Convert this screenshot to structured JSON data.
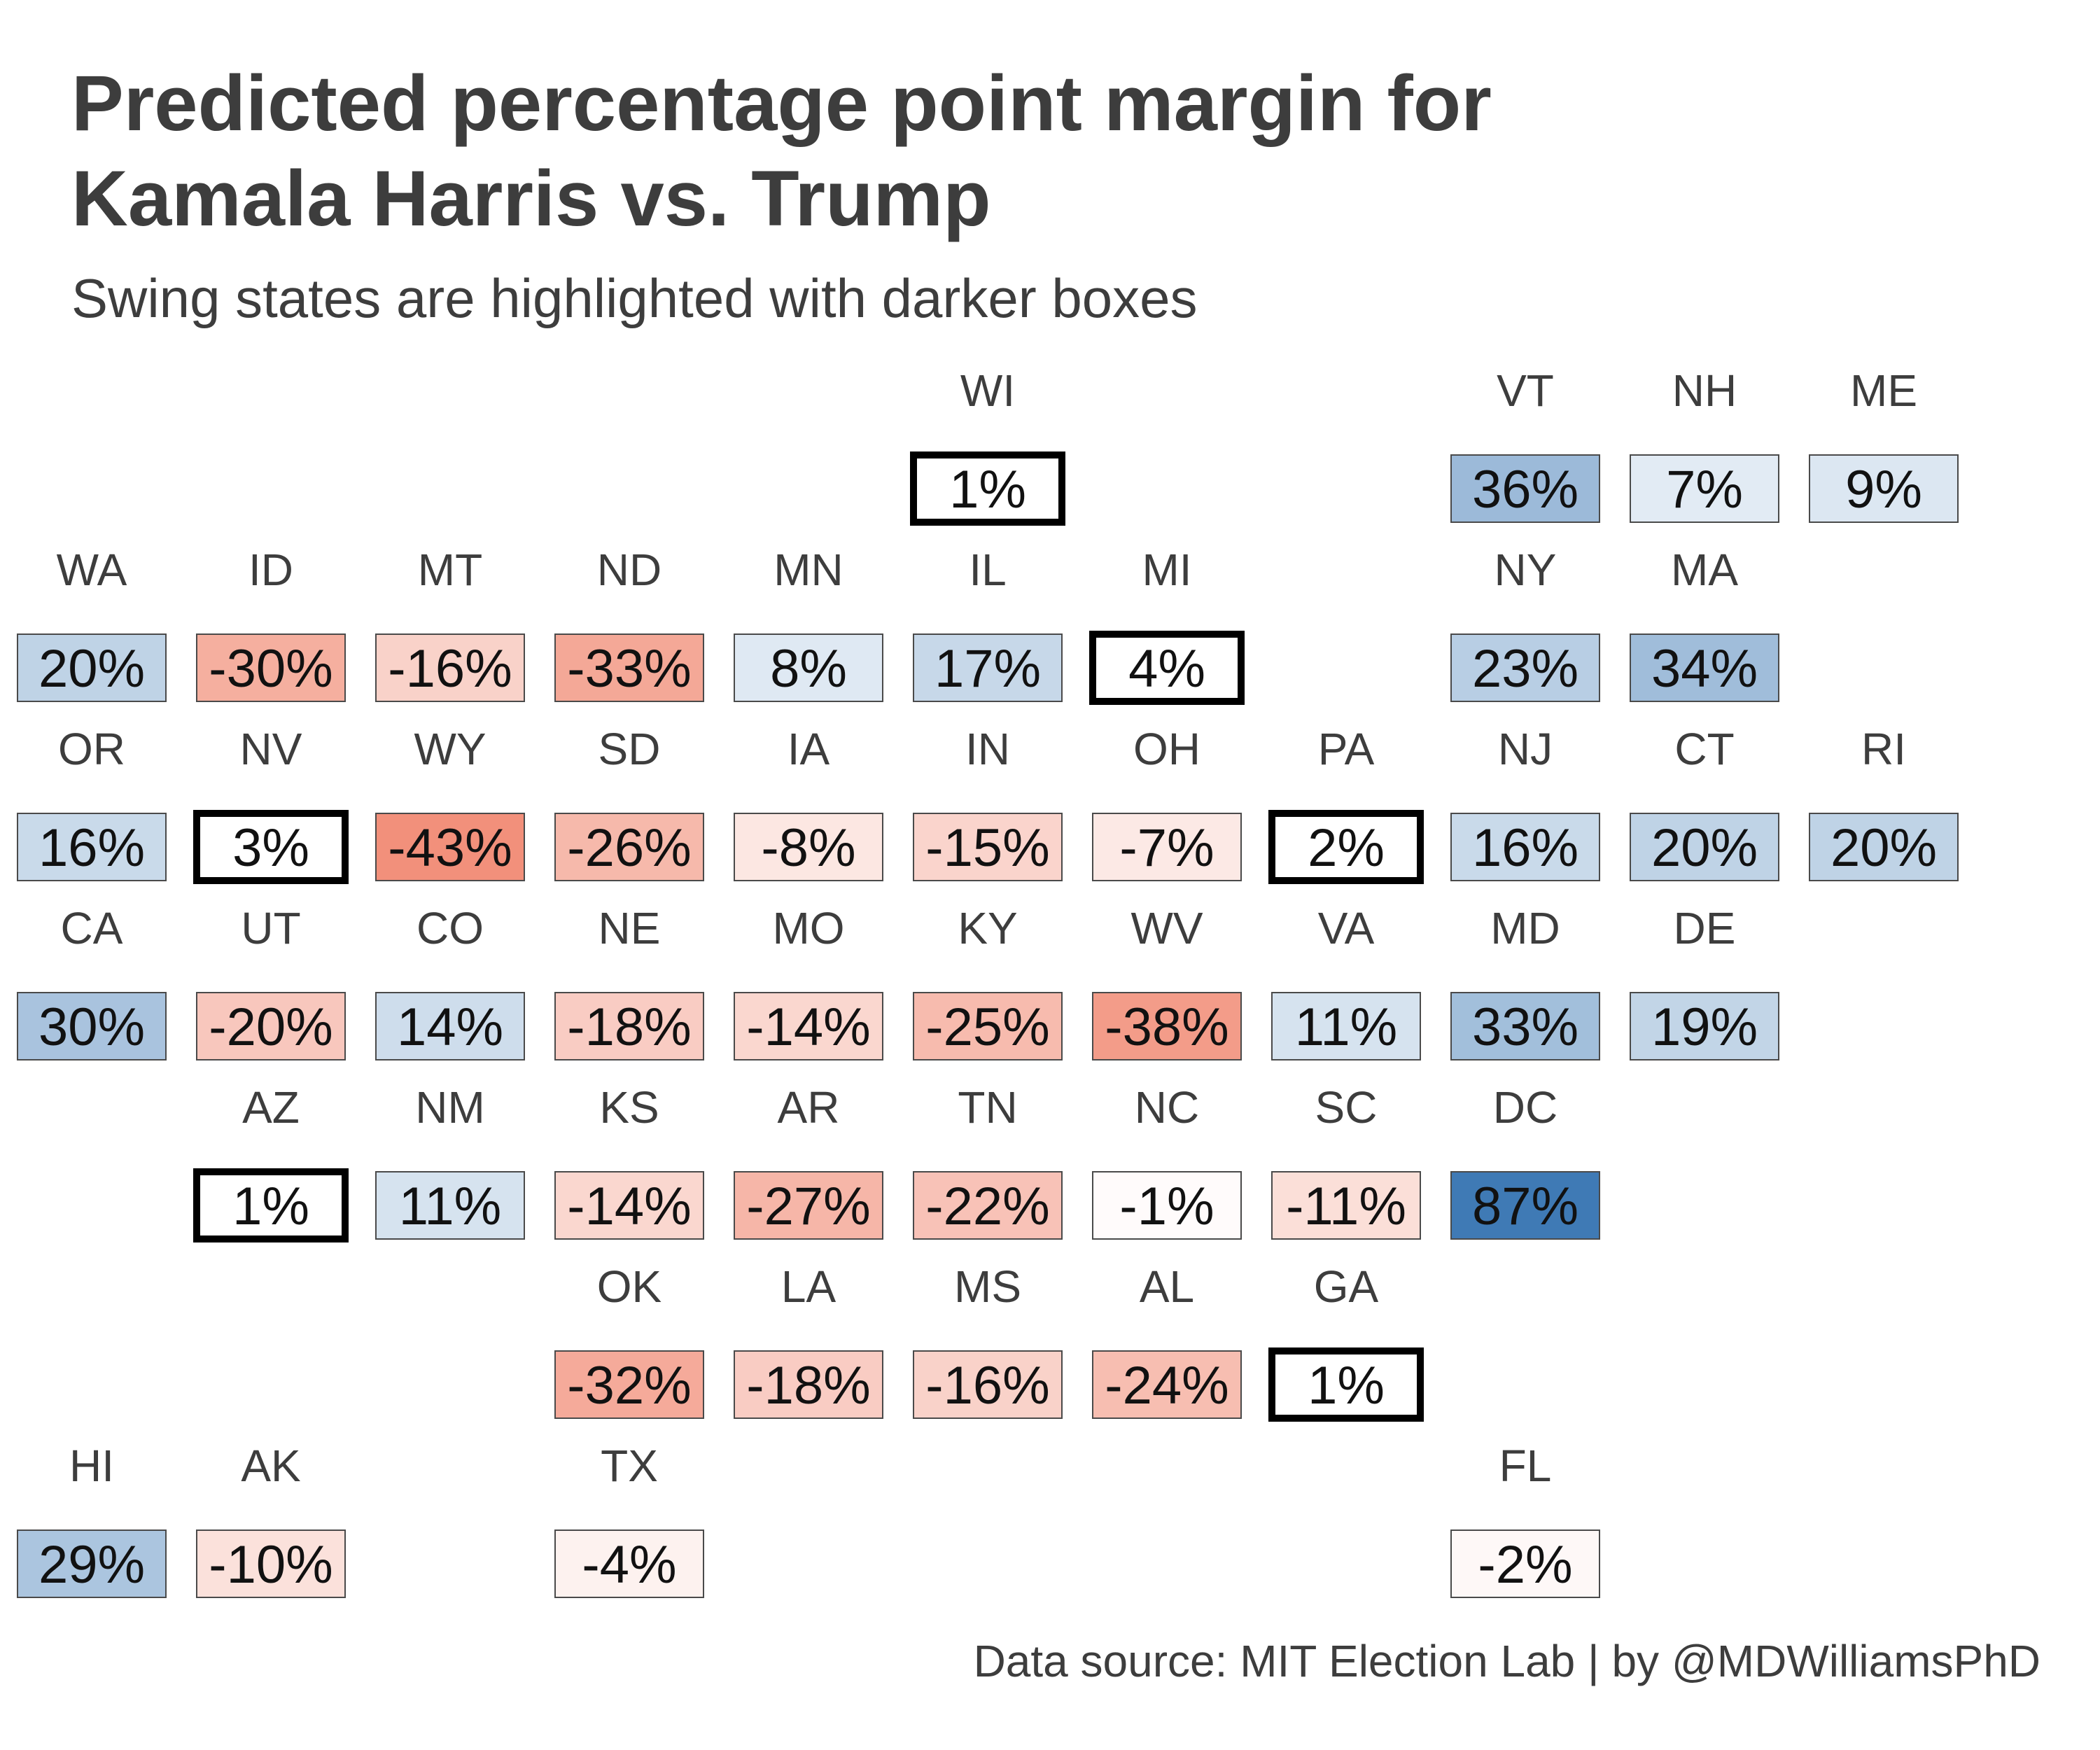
{
  "title": {
    "line1": "Predicted percentage point margin for",
    "line2": "Kamala Harris vs. Trump"
  },
  "subtitle": "Swing states are highlighted with darker boxes",
  "caption": "Data source: MIT Election Lab | by @MDWilliamsPhD",
  "colors": {
    "positive": "#3f7ab5",
    "negative": "#f0846c",
    "neutral": "#ffffff",
    "swing_border": "#000000",
    "tile_border": "#4a4a4a",
    "text": "#3d3d3d"
  },
  "chart_data": {
    "type": "heatmap",
    "layout": "US state tile grid",
    "value_unit": "%",
    "tiles": [
      {
        "state": "WI",
        "label": "1%",
        "value": 1,
        "swing": true,
        "col": 5,
        "row": 0
      },
      {
        "state": "VT",
        "label": "36%",
        "value": 36,
        "swing": false,
        "col": 8,
        "row": 0
      },
      {
        "state": "NH",
        "label": "7%",
        "value": 7,
        "swing": false,
        "col": 9,
        "row": 0
      },
      {
        "state": "ME",
        "label": "9%",
        "value": 9,
        "swing": false,
        "col": 10,
        "row": 0
      },
      {
        "state": "WA",
        "label": "20%",
        "value": 20,
        "swing": false,
        "col": 0,
        "row": 1
      },
      {
        "state": "ID",
        "label": "-30%",
        "value": -30,
        "swing": false,
        "col": 1,
        "row": 1
      },
      {
        "state": "MT",
        "label": "-16%",
        "value": -16,
        "swing": false,
        "col": 2,
        "row": 1
      },
      {
        "state": "ND",
        "label": "-33%",
        "value": -33,
        "swing": false,
        "col": 3,
        "row": 1
      },
      {
        "state": "MN",
        "label": "8%",
        "value": 8,
        "swing": false,
        "col": 4,
        "row": 1
      },
      {
        "state": "IL",
        "label": "17%",
        "value": 17,
        "swing": false,
        "col": 5,
        "row": 1
      },
      {
        "state": "MI",
        "label": "4%",
        "value": 4,
        "swing": true,
        "col": 6,
        "row": 1
      },
      {
        "state": "NY",
        "label": "23%",
        "value": 23,
        "swing": false,
        "col": 8,
        "row": 1
      },
      {
        "state": "MA",
        "label": "34%",
        "value": 34,
        "swing": false,
        "col": 9,
        "row": 1
      },
      {
        "state": "OR",
        "label": "16%",
        "value": 16,
        "swing": false,
        "col": 0,
        "row": 2
      },
      {
        "state": "NV",
        "label": "3%",
        "value": 3,
        "swing": true,
        "col": 1,
        "row": 2
      },
      {
        "state": "WY",
        "label": "-43%",
        "value": -43,
        "swing": false,
        "col": 2,
        "row": 2
      },
      {
        "state": "SD",
        "label": "-26%",
        "value": -26,
        "swing": false,
        "col": 3,
        "row": 2
      },
      {
        "state": "IA",
        "label": "-8%",
        "value": -8,
        "swing": false,
        "col": 4,
        "row": 2
      },
      {
        "state": "IN",
        "label": "-15%",
        "value": -15,
        "swing": false,
        "col": 5,
        "row": 2
      },
      {
        "state": "OH",
        "label": "-7%",
        "value": -7,
        "swing": false,
        "col": 6,
        "row": 2
      },
      {
        "state": "PA",
        "label": "2%",
        "value": 2,
        "swing": true,
        "col": 7,
        "row": 2
      },
      {
        "state": "NJ",
        "label": "16%",
        "value": 16,
        "swing": false,
        "col": 8,
        "row": 2
      },
      {
        "state": "CT",
        "label": "20%",
        "value": 20,
        "swing": false,
        "col": 9,
        "row": 2
      },
      {
        "state": "RI",
        "label": "20%",
        "value": 20,
        "swing": false,
        "col": 10,
        "row": 2
      },
      {
        "state": "CA",
        "label": "30%",
        "value": 30,
        "swing": false,
        "col": 0,
        "row": 3
      },
      {
        "state": "UT",
        "label": "-20%",
        "value": -20,
        "swing": false,
        "col": 1,
        "row": 3
      },
      {
        "state": "CO",
        "label": "14%",
        "value": 14,
        "swing": false,
        "col": 2,
        "row": 3
      },
      {
        "state": "NE",
        "label": "-18%",
        "value": -18,
        "swing": false,
        "col": 3,
        "row": 3
      },
      {
        "state": "MO",
        "label": "-14%",
        "value": -14,
        "swing": false,
        "col": 4,
        "row": 3
      },
      {
        "state": "KY",
        "label": "-25%",
        "value": -25,
        "swing": false,
        "col": 5,
        "row": 3
      },
      {
        "state": "WV",
        "label": "-38%",
        "value": -38,
        "swing": false,
        "col": 6,
        "row": 3
      },
      {
        "state": "VA",
        "label": "11%",
        "value": 11,
        "swing": false,
        "col": 7,
        "row": 3
      },
      {
        "state": "MD",
        "label": "33%",
        "value": 33,
        "swing": false,
        "col": 8,
        "row": 3
      },
      {
        "state": "DE",
        "label": "19%",
        "value": 19,
        "swing": false,
        "col": 9,
        "row": 3
      },
      {
        "state": "AZ",
        "label": "1%",
        "value": 1,
        "swing": true,
        "col": 1,
        "row": 4
      },
      {
        "state": "NM",
        "label": "11%",
        "value": 11,
        "swing": false,
        "col": 2,
        "row": 4
      },
      {
        "state": "KS",
        "label": "-14%",
        "value": -14,
        "swing": false,
        "col": 3,
        "row": 4
      },
      {
        "state": "AR",
        "label": "-27%",
        "value": -27,
        "swing": false,
        "col": 4,
        "row": 4
      },
      {
        "state": "TN",
        "label": "-22%",
        "value": -22,
        "swing": false,
        "col": 5,
        "row": 4
      },
      {
        "state": "NC",
        "label": "-1%",
        "value": -1,
        "swing": false,
        "col": 6,
        "row": 4
      },
      {
        "state": "SC",
        "label": "-11%",
        "value": -11,
        "swing": false,
        "col": 7,
        "row": 4
      },
      {
        "state": "DC",
        "label": "87%",
        "value": 87,
        "swing": false,
        "col": 8,
        "row": 4
      },
      {
        "state": "OK",
        "label": "-32%",
        "value": -32,
        "swing": false,
        "col": 3,
        "row": 5
      },
      {
        "state": "LA",
        "label": "-18%",
        "value": -18,
        "swing": false,
        "col": 4,
        "row": 5
      },
      {
        "state": "MS",
        "label": "-16%",
        "value": -16,
        "swing": false,
        "col": 5,
        "row": 5
      },
      {
        "state": "AL",
        "label": "-24%",
        "value": -24,
        "swing": false,
        "col": 6,
        "row": 5
      },
      {
        "state": "GA",
        "label": "1%",
        "value": 1,
        "swing": true,
        "col": 7,
        "row": 5
      },
      {
        "state": "HI",
        "label": "29%",
        "value": 29,
        "swing": false,
        "col": 0,
        "row": 6
      },
      {
        "state": "AK",
        "label": "-10%",
        "value": -10,
        "swing": false,
        "col": 1,
        "row": 6
      },
      {
        "state": "TX",
        "label": "-4%",
        "value": -4,
        "swing": false,
        "col": 3,
        "row": 6
      },
      {
        "state": "FL",
        "label": "-2%",
        "value": -2,
        "swing": false,
        "col": 8,
        "row": 6
      }
    ]
  }
}
